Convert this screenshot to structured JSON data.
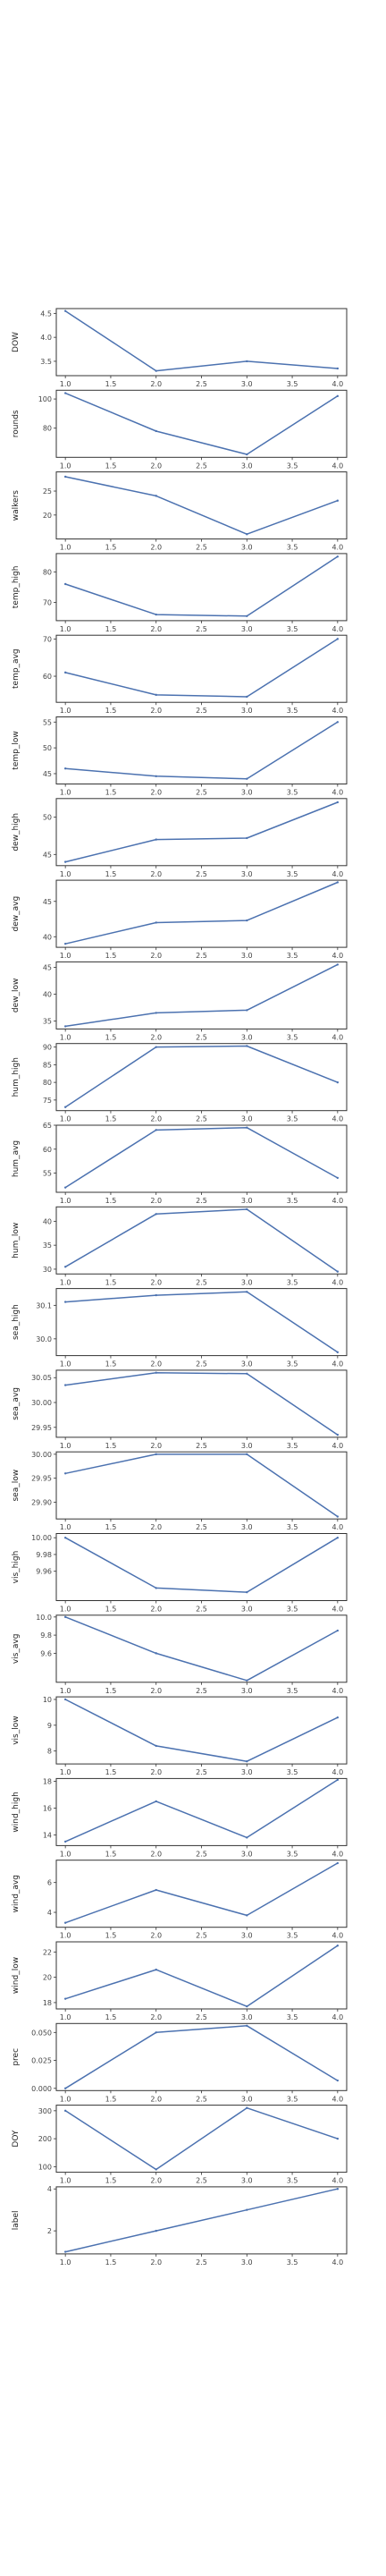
{
  "chart_data": {
    "type": "line",
    "layout": "vertical-stack",
    "shared_x": true,
    "x": [
      1,
      2,
      3,
      4
    ],
    "xlim": [
      0.9,
      4.1
    ],
    "xticks": [
      1.0,
      1.5,
      2.0,
      2.5,
      3.0,
      3.5,
      4.0
    ],
    "xtick_labels": [
      "1.0",
      "1.5",
      "2.0",
      "2.5",
      "3.0",
      "3.5",
      "4.0"
    ],
    "line_color": "#4c72b0",
    "axes_color": "#333333",
    "panels": [
      {
        "ylabel": "DOW",
        "y": [
          4.55,
          3.3,
          3.5,
          3.35
        ],
        "ylim": [
          3.2,
          4.6
        ],
        "yticks": [
          "3.5",
          "4.0",
          "4.5"
        ],
        "ytick_values": [
          3.5,
          4.0,
          4.5
        ]
      },
      {
        "ylabel": "rounds",
        "y": [
          104,
          78,
          62,
          102
        ],
        "ylim": [
          60,
          106
        ],
        "yticks": [
          "80",
          "100"
        ],
        "ytick_values": [
          80,
          100
        ]
      },
      {
        "ylabel": "walkers",
        "y": [
          28,
          24,
          16,
          23
        ],
        "ylim": [
          15,
          29
        ],
        "yticks": [
          "20",
          "25"
        ],
        "ytick_values": [
          20,
          25
        ]
      },
      {
        "ylabel": "temp_high",
        "y": [
          76,
          66,
          65.5,
          85
        ],
        "ylim": [
          64,
          86
        ],
        "yticks": [
          "70",
          "80"
        ],
        "ytick_values": [
          70,
          80
        ]
      },
      {
        "ylabel": "temp_avg",
        "y": [
          61,
          55,
          54.5,
          70
        ],
        "ylim": [
          53,
          71
        ],
        "yticks": [
          "60",
          "70"
        ],
        "ytick_values": [
          60,
          70
        ]
      },
      {
        "ylabel": "temp_low",
        "y": [
          46,
          44.5,
          44,
          55
        ],
        "ylim": [
          43,
          56
        ],
        "yticks": [
          "45",
          "50",
          "55"
        ],
        "ytick_values": [
          45,
          50,
          55
        ]
      },
      {
        "ylabel": "dew_high",
        "y": [
          44,
          47,
          47.2,
          52
        ],
        "ylim": [
          43.5,
          52.5
        ],
        "yticks": [
          "45",
          "50"
        ],
        "ytick_values": [
          45,
          50
        ]
      },
      {
        "ylabel": "dew_avg",
        "y": [
          39,
          42,
          42.3,
          47.7
        ],
        "ylim": [
          38.5,
          48
        ],
        "yticks": [
          "40",
          "45"
        ],
        "ytick_values": [
          40,
          45
        ]
      },
      {
        "ylabel": "dew_low",
        "y": [
          34,
          36.5,
          37,
          45.5
        ],
        "ylim": [
          33.5,
          46
        ],
        "yticks": [
          "35",
          "40",
          "45"
        ],
        "ytick_values": [
          35,
          40,
          45
        ]
      },
      {
        "ylabel": "hum_high",
        "y": [
          73,
          90,
          90.3,
          80
        ],
        "ylim": [
          72,
          91
        ],
        "yticks": [
          "75",
          "80",
          "85",
          "90"
        ],
        "ytick_values": [
          75,
          80,
          85,
          90
        ]
      },
      {
        "ylabel": "hum_avg",
        "y": [
          52,
          64,
          64.5,
          54
        ],
        "ylim": [
          51,
          65
        ],
        "yticks": [
          "55",
          "60",
          "65"
        ],
        "ytick_values": [
          55,
          60,
          65
        ]
      },
      {
        "ylabel": "hum_low",
        "y": [
          30.5,
          41.5,
          42.5,
          29.5
        ],
        "ylim": [
          29,
          43
        ],
        "yticks": [
          "30",
          "35",
          "40"
        ],
        "ytick_values": [
          30,
          35,
          40
        ]
      },
      {
        "ylabel": "sea_high",
        "y": [
          30.11,
          30.13,
          30.14,
          29.96
        ],
        "ylim": [
          29.95,
          30.15
        ],
        "yticks": [
          "30.0",
          "30.1"
        ],
        "ytick_values": [
          30.0,
          30.1
        ]
      },
      {
        "ylabel": "sea_avg",
        "y": [
          30.035,
          30.06,
          30.058,
          29.935
        ],
        "ylim": [
          29.93,
          30.065
        ],
        "yticks": [
          "29.95",
          "30.00",
          "30.05"
        ],
        "ytick_values": [
          29.95,
          30.0,
          30.05
        ]
      },
      {
        "ylabel": "sea_low",
        "y": [
          29.96,
          30.0,
          30.0,
          29.87
        ],
        "ylim": [
          29.865,
          30.005
        ],
        "yticks": [
          "29.90",
          "29.95",
          "30.00"
        ],
        "ytick_values": [
          29.9,
          29.95,
          30.0
        ]
      },
      {
        "ylabel": "vis_high",
        "y": [
          10.0,
          9.94,
          9.935,
          10.0
        ],
        "ylim": [
          9.925,
          10.005
        ],
        "yticks": [
          "9.96",
          "9.98",
          "10.00"
        ],
        "ytick_values": [
          9.96,
          9.98,
          10.0
        ]
      },
      {
        "ylabel": "vis_avg",
        "y": [
          10.0,
          9.6,
          9.3,
          9.85
        ],
        "ylim": [
          9.28,
          10.02
        ],
        "yticks": [
          "9.6",
          "9.8",
          "10.0"
        ],
        "ytick_values": [
          9.6,
          9.8,
          10.0
        ]
      },
      {
        "ylabel": "vis_low",
        "y": [
          10.0,
          8.2,
          7.6,
          9.3
        ],
        "ylim": [
          7.5,
          10.1
        ],
        "yticks": [
          "8",
          "9",
          "10"
        ],
        "ytick_values": [
          8,
          9,
          10
        ]
      },
      {
        "ylabel": "wind_high",
        "y": [
          13.5,
          16.5,
          13.8,
          18.1
        ],
        "ylim": [
          13.2,
          18.2
        ],
        "yticks": [
          "14",
          "16",
          "18"
        ],
        "ytick_values": [
          14,
          16,
          18
        ]
      },
      {
        "ylabel": "wind_avg",
        "y": [
          3.3,
          5.5,
          3.8,
          7.3
        ],
        "ylim": [
          3.0,
          7.5
        ],
        "yticks": [
          "4",
          "6"
        ],
        "ytick_values": [
          4,
          6
        ]
      },
      {
        "ylabel": "wind_low",
        "y": [
          18.3,
          20.6,
          17.7,
          22.5
        ],
        "ylim": [
          17.5,
          22.8
        ],
        "yticks": [
          "18",
          "20",
          "22"
        ],
        "ytick_values": [
          18,
          20,
          22
        ]
      },
      {
        "ylabel": "prec",
        "y": [
          0.0,
          0.05,
          0.056,
          0.007
        ],
        "ylim": [
          -0.002,
          0.058
        ],
        "yticks": [
          "0.000",
          "0.025",
          "0.050"
        ],
        "ytick_values": [
          0.0,
          0.025,
          0.05
        ]
      },
      {
        "ylabel": "DOY",
        "y": [
          300,
          90,
          310,
          200
        ],
        "ylim": [
          80,
          320
        ],
        "yticks": [
          "100",
          "200",
          "300"
        ],
        "ytick_values": [
          100,
          200,
          300
        ]
      },
      {
        "ylabel": "label",
        "y": [
          1,
          2,
          3,
          4
        ],
        "ylim": [
          0.9,
          4.1
        ],
        "yticks": [
          "2",
          "4"
        ],
        "ytick_values": [
          2,
          4
        ]
      }
    ]
  }
}
